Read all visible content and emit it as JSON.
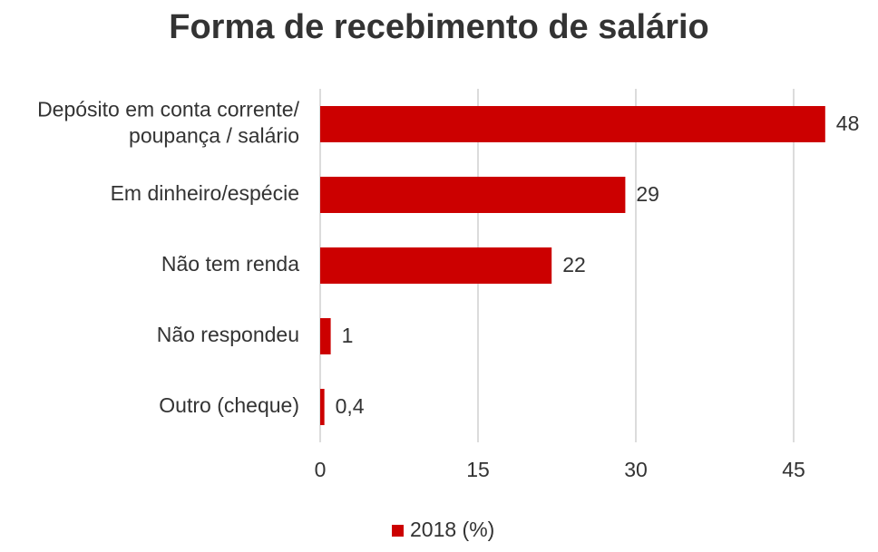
{
  "chart_data": {
    "type": "bar",
    "orientation": "horizontal",
    "title": "Forma de recebimento de salário",
    "categories": [
      "Depósito em conta corrente/\npoupança / salário",
      "Em dinheiro/espécie",
      "Não tem renda",
      "Não respondeu",
      "Outro (cheque)"
    ],
    "series": [
      {
        "name": "2018 (%)",
        "color": "#cc0000",
        "values": [
          48,
          29,
          22,
          1,
          0.4
        ],
        "value_labels": [
          "48",
          "29",
          "22",
          "1",
          "0,4"
        ]
      }
    ],
    "xlim": [
      0,
      50
    ],
    "xticks": [
      0,
      15,
      30,
      45
    ],
    "grid": true,
    "legend": "bottom"
  }
}
